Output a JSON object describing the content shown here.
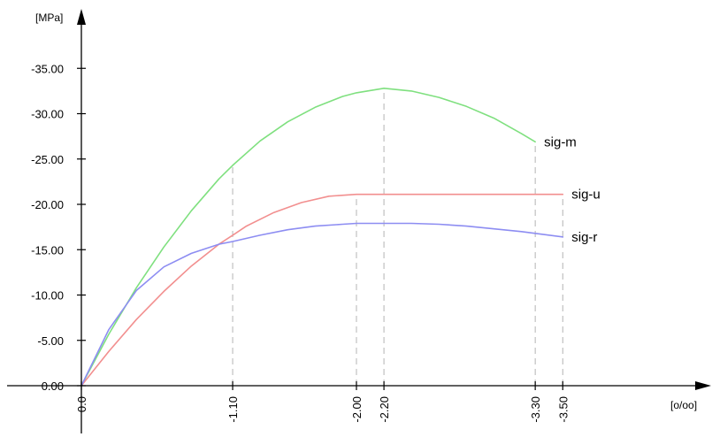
{
  "chart_data": {
    "type": "line",
    "x_unit": "[o/oo]",
    "y_unit": "[MPa]",
    "xlim": [
      0,
      -3.75
    ],
    "ylim": [
      0,
      -37
    ],
    "y_ticks": [
      {
        "value": 0,
        "label": "0.00"
      },
      {
        "value": -5,
        "label": "-5.00"
      },
      {
        "value": -10,
        "label": "-10.00"
      },
      {
        "value": -15,
        "label": "-15.00"
      },
      {
        "value": -20,
        "label": "-20.00"
      },
      {
        "value": -25,
        "label": "-25.00"
      },
      {
        "value": -30,
        "label": "-30.00"
      },
      {
        "value": -35,
        "label": "-35.00"
      }
    ],
    "x_ticks": [
      {
        "value": 0,
        "label": "0.0"
      },
      {
        "value": -1.1,
        "label": "-1.10"
      },
      {
        "value": -2.0,
        "label": "-2.00"
      },
      {
        "value": -2.2,
        "label": "-2.20"
      },
      {
        "value": -3.3,
        "label": "-3.30"
      },
      {
        "value": -3.5,
        "label": "-3.50"
      }
    ],
    "grid": false,
    "series": [
      {
        "name": "sig-m",
        "color": "#7fe07f",
        "x": [
          0,
          -0.2,
          -0.4,
          -0.6,
          -0.8,
          -1.0,
          -1.1,
          -1.3,
          -1.5,
          -1.7,
          -1.9,
          -2.0,
          -2.2,
          -2.4,
          -2.6,
          -2.8,
          -3.0,
          -3.2,
          -3.3
        ],
        "y": [
          0,
          -5.7,
          -10.8,
          -15.3,
          -19.3,
          -22.8,
          -24.3,
          -27.0,
          -29.1,
          -30.7,
          -31.9,
          -32.3,
          -32.8,
          -32.5,
          -31.8,
          -30.8,
          -29.5,
          -27.8,
          -26.9
        ]
      },
      {
        "name": "sig-u",
        "color": "#f28f8f",
        "x": [
          0,
          -0.2,
          -0.4,
          -0.6,
          -0.8,
          -1.0,
          -1.1,
          -1.2,
          -1.4,
          -1.6,
          -1.8,
          -2.0,
          -2.2,
          -2.6,
          -3.0,
          -3.5
        ],
        "y": [
          0,
          -3.8,
          -7.3,
          -10.4,
          -13.2,
          -15.6,
          -16.6,
          -17.6,
          -19.1,
          -20.2,
          -20.9,
          -21.1,
          -21.1,
          -21.1,
          -21.1,
          -21.1
        ]
      },
      {
        "name": "sig-r",
        "color": "#8d8df2",
        "x": [
          0,
          -0.2,
          -0.4,
          -0.6,
          -0.8,
          -1.0,
          -1.1,
          -1.3,
          -1.5,
          -1.7,
          -1.9,
          -2.0,
          -2.2,
          -2.4,
          -2.6,
          -2.8,
          -3.0,
          -3.2,
          -3.5
        ],
        "y": [
          0,
          -6.2,
          -10.5,
          -13.1,
          -14.6,
          -15.6,
          -15.9,
          -16.6,
          -17.2,
          -17.6,
          -17.8,
          -17.9,
          -17.9,
          -17.9,
          -17.8,
          -17.6,
          -17.3,
          -17.0,
          -16.4
        ]
      }
    ],
    "markers": [
      {
        "x": -1.1,
        "y": -24.3
      },
      {
        "x": -2.0,
        "y": -21.1
      },
      {
        "x": -2.2,
        "y": -32.8
      },
      {
        "x": -3.3,
        "y": -26.9
      },
      {
        "x": -3.5,
        "y": -21.1
      }
    ]
  }
}
